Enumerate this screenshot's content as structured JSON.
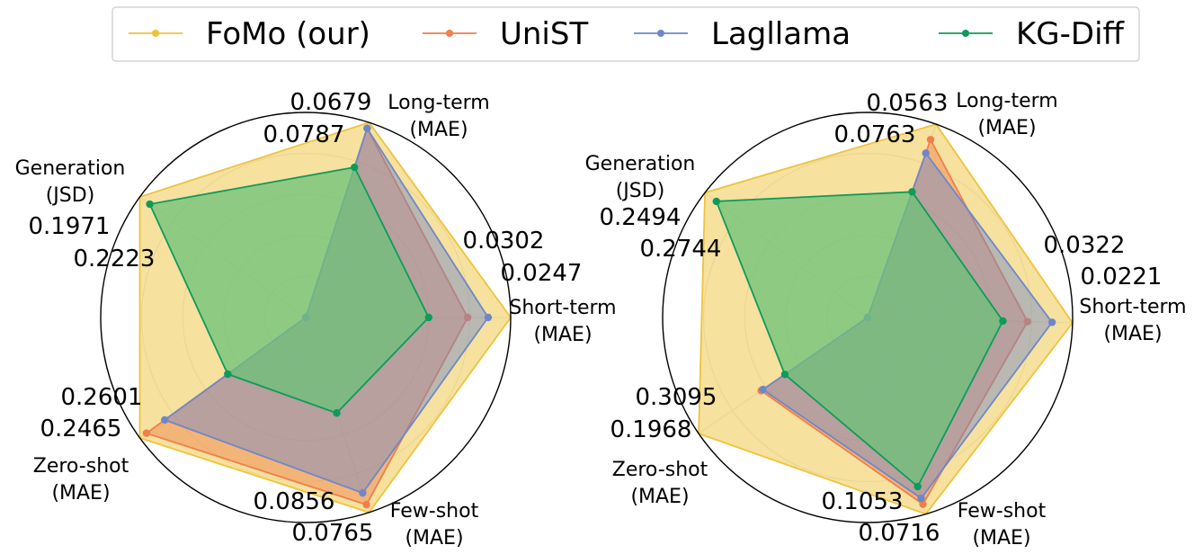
{
  "colors": {
    "fomo": "#eec33c",
    "fomo_fill": "#f4dc8e",
    "unist": "#f07f4a",
    "lagllama": "#6f87c9",
    "kgdiff": "#0e9b5a",
    "kgdiff_fill": "#6cc27a",
    "grid": "#b3b3b3",
    "frame": "#000000"
  },
  "legend": {
    "items": [
      {
        "key": "fomo",
        "label": "FoMo (our)"
      },
      {
        "key": "unist",
        "label": "UniST"
      },
      {
        "key": "lagllama",
        "label": "Lagllama"
      },
      {
        "key": "kgdiff",
        "label": "KG-Diff"
      }
    ]
  },
  "chart_data": [
    {
      "type": "radar",
      "axes": [
        {
          "label": [
            "Short-term",
            "(MAE)"
          ],
          "values": [
            "0.0302",
            "0.0247"
          ]
        },
        {
          "label": [
            "Long-term",
            "(MAE)"
          ],
          "values": [
            "0.0679",
            "0.0787"
          ]
        },
        {
          "label": [
            "Generation",
            "(JSD)"
          ],
          "values": [
            "0.1971",
            "0.2223"
          ]
        },
        {
          "label": [
            "Zero-shot",
            "(MAE)"
          ],
          "values": [
            "0.2601",
            "0.2465"
          ]
        },
        {
          "label": [
            "Few-shot",
            "(MAE)"
          ],
          "values": [
            "0.0856",
            "0.0765"
          ]
        }
      ],
      "rmax": 1,
      "grid_levels": [
        0.2,
        0.4,
        0.6,
        0.8
      ],
      "series": [
        {
          "key": "fomo",
          "name": "FoMo (our)",
          "values": [
            1.0,
            1.0,
            1.0,
            1.0,
            1.0
          ]
        },
        {
          "key": "unist",
          "name": "UniST",
          "values": [
            0.79,
            0.97,
            0.0,
            0.96,
            0.96
          ]
        },
        {
          "key": "lagllama",
          "name": "Lagllama",
          "values": [
            0.89,
            0.97,
            0.0,
            0.85,
            0.9
          ]
        },
        {
          "key": "kgdiff",
          "name": "KG-Diff",
          "values": [
            0.6,
            0.77,
            0.94,
            0.47,
            0.49
          ]
        }
      ]
    },
    {
      "type": "radar",
      "axes": [
        {
          "label": [
            "Short-term",
            "(MAE)"
          ],
          "values": [
            "0.0322",
            "0.0221"
          ]
        },
        {
          "label": [
            "Long-term",
            "(MAE)"
          ],
          "values": [
            "0.0563",
            "0.0763"
          ]
        },
        {
          "label": [
            "Generation",
            "(JSD)"
          ],
          "values": [
            "0.2494",
            "0.2744"
          ]
        },
        {
          "label": [
            "Zero-shot",
            "(MAE)"
          ],
          "values": [
            "0.3095",
            "0.1968"
          ]
        },
        {
          "label": [
            "Few-shot",
            "(MAE)"
          ],
          "values": [
            "0.1053",
            "0.0716"
          ]
        }
      ],
      "rmax": 1,
      "grid_levels": [
        0.2,
        0.4,
        0.6,
        0.8
      ],
      "series": [
        {
          "key": "fomo",
          "name": "FoMo (our)",
          "values": [
            1.0,
            1.0,
            1.0,
            1.0,
            1.0
          ]
        },
        {
          "key": "unist",
          "name": "UniST",
          "values": [
            0.78,
            0.92,
            0.0,
            0.63,
            0.95
          ]
        },
        {
          "key": "lagllama",
          "name": "Lagllama",
          "values": [
            0.9,
            0.85,
            0.0,
            0.62,
            0.92
          ]
        },
        {
          "key": "kgdiff",
          "name": "KG-Diff",
          "values": [
            0.66,
            0.65,
            0.93,
            0.49,
            0.86
          ]
        }
      ]
    }
  ]
}
